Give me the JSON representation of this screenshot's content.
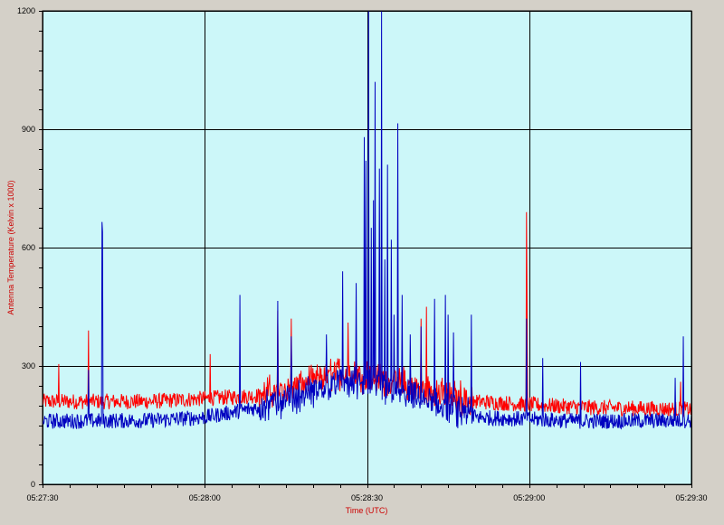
{
  "chart_data": {
    "type": "line",
    "title": "",
    "xlabel": "Time (UTC)",
    "ylabel": "Antenna Temperature (Kelvin x 1000)",
    "xlim": [
      "05:27:30",
      "05:29:30"
    ],
    "ylim": [
      0,
      1200
    ],
    "x_tick_labels": [
      "05:27:30",
      "05:28:00",
      "05:28:30",
      "05:29:00",
      "05:29:30"
    ],
    "y_tick_labels": [
      "0",
      "300",
      "600",
      "900",
      "1200"
    ],
    "grid": true,
    "legend": "none",
    "series": [
      {
        "color": "#ff0000",
        "baseline": [
          [
            0,
            210
          ],
          [
            20,
            210
          ],
          [
            40,
            225
          ],
          [
            50,
            260
          ],
          [
            55,
            285
          ],
          [
            60,
            275
          ],
          [
            70,
            240
          ],
          [
            80,
            210
          ],
          [
            100,
            195
          ],
          [
            120,
            190
          ]
        ],
        "noise": 20,
        "spikes": [
          [
            3,
            305
          ],
          [
            8.5,
            390
          ],
          [
            31,
            330
          ],
          [
            43.5,
            440
          ],
          [
            46,
            420
          ],
          [
            56.5,
            410
          ],
          [
            70,
            420
          ],
          [
            71,
            450
          ],
          [
            89.5,
            690
          ],
          [
            89.6,
            465
          ],
          [
            118,
            260
          ]
        ]
      },
      {
        "color": "#0000c0",
        "baseline": [
          [
            0,
            160
          ],
          [
            20,
            162
          ],
          [
            30,
            170
          ],
          [
            40,
            195
          ],
          [
            50,
            235
          ],
          [
            55,
            260
          ],
          [
            60,
            255
          ],
          [
            70,
            215
          ],
          [
            80,
            170
          ],
          [
            100,
            160
          ],
          [
            120,
            162
          ]
        ],
        "noise": 20,
        "spikes": [
          [
            8.5,
            290
          ],
          [
            11,
            665
          ],
          [
            11.1,
            640
          ],
          [
            36.5,
            480
          ],
          [
            43.5,
            465
          ],
          [
            46,
            375
          ],
          [
            52.5,
            380
          ],
          [
            55.5,
            540
          ],
          [
            58,
            510
          ],
          [
            59.5,
            880
          ],
          [
            59.8,
            820
          ],
          [
            60.3,
            1200
          ],
          [
            60.8,
            650
          ],
          [
            61.2,
            720
          ],
          [
            61.5,
            1020
          ],
          [
            62.3,
            800
          ],
          [
            62.7,
            1200
          ],
          [
            63.3,
            570
          ],
          [
            63.8,
            810
          ],
          [
            64.5,
            620
          ],
          [
            65,
            430
          ],
          [
            65.7,
            915
          ],
          [
            66.5,
            480
          ],
          [
            68,
            380
          ],
          [
            70,
            400
          ],
          [
            72.5,
            470
          ],
          [
            74.5,
            480
          ],
          [
            75,
            430
          ],
          [
            76,
            385
          ],
          [
            79.3,
            430
          ],
          [
            89.5,
            420
          ],
          [
            92.5,
            320
          ],
          [
            99.5,
            310
          ],
          [
            117,
            270
          ],
          [
            118.5,
            375
          ]
        ]
      }
    ]
  }
}
